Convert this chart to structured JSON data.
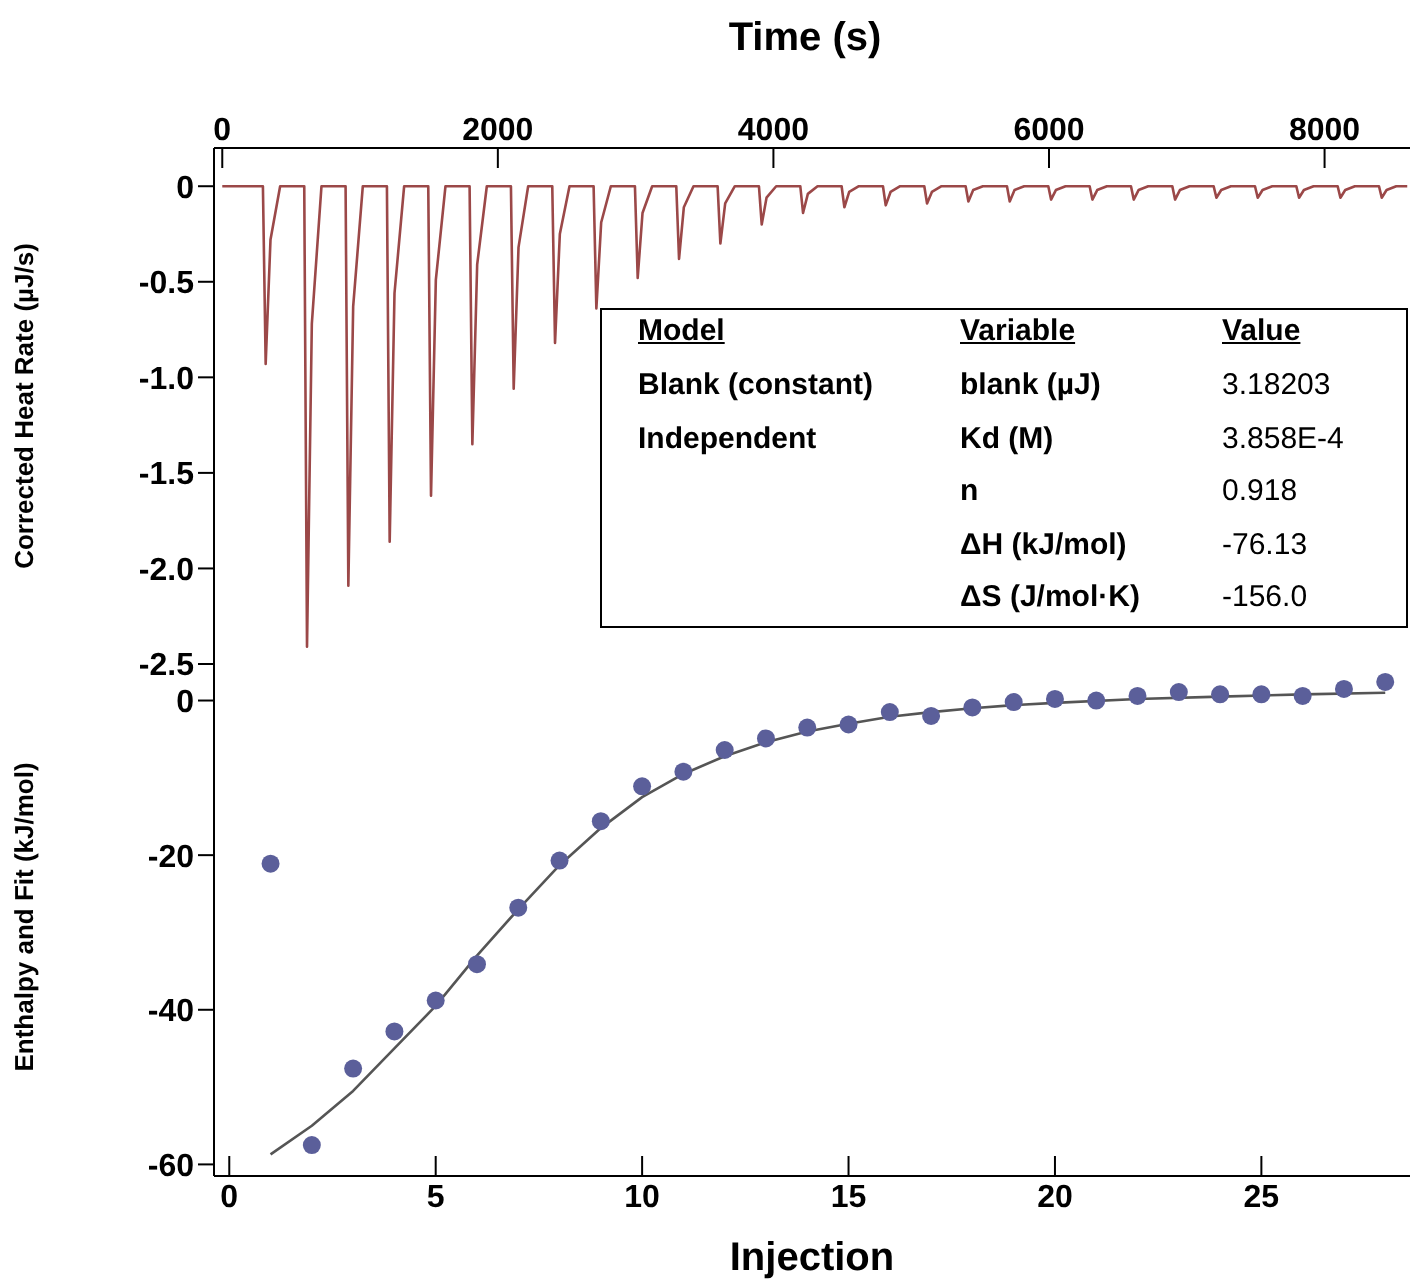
{
  "chart_data": [
    {
      "type": "line",
      "xlabel": "Time (s)",
      "ylabel": "Corrected Heat Rate (µJ/s)",
      "xlim": [
        -60,
        8620
      ],
      "xticks": [
        0,
        2000,
        4000,
        6000,
        8000
      ],
      "ylim": [
        -2.5,
        0.2
      ],
      "yticks": [
        0,
        -0.5,
        {
          "value": -1,
          "label": "-1.0"
        },
        -1.5,
        {
          "value": -2,
          "label": "-2.0"
        },
        -2.5
      ],
      "series": [
        {
          "color": "#9b4848",
          "x": [
            0,
            295,
            315,
            350,
            420,
            595,
            615,
            650,
            720,
            895,
            915,
            950,
            1020,
            1195,
            1215,
            1250,
            1320,
            1495,
            1515,
            1550,
            1620,
            1795,
            1815,
            1850,
            1920,
            2095,
            2115,
            2150,
            2220,
            2395,
            2415,
            2450,
            2520,
            2695,
            2715,
            2750,
            2820,
            2995,
            3015,
            3050,
            3120,
            3295,
            3315,
            3350,
            3420,
            3595,
            3615,
            3650,
            3720,
            3895,
            3915,
            3950,
            4020,
            4195,
            4215,
            4250,
            4320,
            4495,
            4515,
            4550,
            4620,
            4795,
            4815,
            4850,
            4920,
            5095,
            5115,
            5150,
            5220,
            5395,
            5415,
            5450,
            5520,
            5695,
            5715,
            5750,
            5820,
            5995,
            6015,
            6050,
            6120,
            6295,
            6315,
            6350,
            6420,
            6595,
            6615,
            6650,
            6720,
            6895,
            6915,
            6950,
            7020,
            7195,
            7215,
            7250,
            7320,
            7495,
            7515,
            7550,
            7620,
            7795,
            7815,
            7850,
            7920,
            8095,
            8115,
            8150,
            8220,
            8395,
            8415,
            8450,
            8520,
            8600
          ],
          "values": [
            0,
            0,
            -0.93,
            -0.28,
            0,
            0,
            -2.41,
            -0.72,
            0,
            0,
            -2.09,
            -0.63,
            0,
            0,
            -1.86,
            -0.56,
            0,
            0,
            -1.62,
            -0.49,
            0,
            0,
            -1.35,
            -0.41,
            0,
            0,
            -1.06,
            -0.32,
            0,
            0,
            -0.82,
            -0.25,
            0,
            0,
            -0.64,
            -0.19,
            0,
            0,
            -0.48,
            -0.14,
            0,
            0,
            -0.38,
            -0.11,
            0,
            0,
            -0.3,
            -0.09,
            0,
            0,
            -0.2,
            -0.06,
            0,
            0,
            -0.14,
            -0.04,
            0,
            0,
            -0.11,
            -0.03,
            0,
            0,
            -0.1,
            -0.03,
            0,
            0,
            -0.09,
            -0.03,
            0,
            0,
            -0.08,
            -0.02,
            0,
            0,
            -0.08,
            -0.02,
            0,
            0,
            -0.07,
            -0.02,
            0,
            0,
            -0.07,
            -0.02,
            0,
            0,
            -0.07,
            -0.02,
            0,
            0,
            -0.07,
            -0.02,
            0,
            0,
            -0.06,
            -0.02,
            0,
            0,
            -0.06,
            -0.02,
            0,
            0,
            -0.06,
            -0.02,
            0,
            0,
            -0.06,
            -0.02,
            0,
            0,
            -0.06,
            -0.02,
            0,
            0
          ]
        }
      ],
      "annotations": [
        "Model",
        "Variable",
        "Value",
        "Blank (constant)",
        "blank (µJ)",
        "3.18203",
        "Independent",
        "Kd (M)",
        "3.858E-4",
        "n",
        "0.918",
        "ΔH (kJ/mol)",
        "-76.13",
        "ΔS (J/mol·K)",
        "-156.0"
      ]
    },
    {
      "type": "scatter",
      "xlabel": "Injection",
      "ylabel": "Enthalpy and Fit (kJ/mol)",
      "xlim": [
        -0.37,
        28.6
      ],
      "xticks": [
        0,
        5,
        10,
        15,
        20,
        25
      ],
      "ylim": [
        -61.5,
        5.5
      ],
      "yticks": [
        0,
        -20,
        -40,
        -60
      ],
      "series": [
        {
          "marker": "circle",
          "color": "#5b5f9a",
          "x": [
            1,
            2,
            3,
            4,
            5,
            6,
            7,
            8,
            9,
            10,
            11,
            12,
            13,
            14,
            15,
            16,
            17,
            18,
            19,
            20,
            21,
            22,
            23,
            24,
            25,
            26,
            27,
            28
          ],
          "values": [
            -21.1,
            -57.5,
            -47.6,
            -42.8,
            -38.8,
            -34.1,
            -26.8,
            -20.7,
            -15.6,
            -11.1,
            -9.2,
            -6.4,
            -4.9,
            -3.5,
            -3.1,
            -1.5,
            -2.0,
            -0.9,
            -0.2,
            0.2,
            0,
            0.6,
            1.1,
            0.8,
            0.8,
            0.6,
            1.5,
            2.4
          ]
        },
        {
          "type": "line",
          "color": "#555555",
          "x": [
            1,
            2,
            3,
            4,
            5,
            6,
            7,
            8,
            9,
            10,
            11,
            12,
            13,
            14,
            15,
            16,
            17,
            18,
            19,
            20,
            22,
            24,
            26,
            28
          ],
          "values": [
            -58.7,
            -55,
            -50.5,
            -45,
            -39.5,
            -33,
            -27,
            -21.3,
            -16.5,
            -12.5,
            -9.5,
            -7.2,
            -5.4,
            -4,
            -3,
            -2.1,
            -1.5,
            -1,
            -0.6,
            -0.3,
            0.2,
            0.5,
            0.8,
            1.0
          ]
        }
      ]
    }
  ]
}
